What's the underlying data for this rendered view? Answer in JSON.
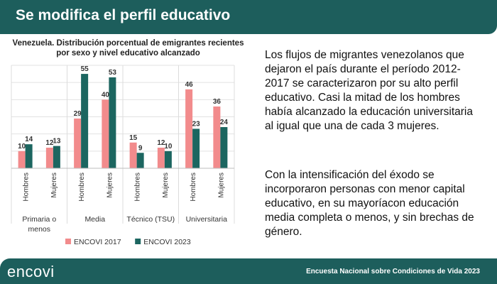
{
  "header": {
    "title": "Se modifica el perfil educativo"
  },
  "chart_data": {
    "type": "bar",
    "title": "Venezuela. Distribución porcentual de emigrantes recientes por sexo y nivel educativo alcanzado",
    "groups": [
      "Primaria o menos",
      "Media",
      "Técnico (TSU)",
      "Universitaria"
    ],
    "categories": [
      "Hombres",
      "Mujeres",
      "Hombres",
      "Mujeres",
      "Hombres",
      "Mujeres",
      "Hombres",
      "Mujeres"
    ],
    "series": [
      {
        "name": "ENCOVI 2017",
        "values": [
          10,
          12,
          29,
          40,
          15,
          12,
          46,
          36
        ],
        "color": "#f28b8c"
      },
      {
        "name": "ENCOVI 2023",
        "values": [
          14,
          13,
          55,
          53,
          9,
          10,
          23,
          24
        ],
        "color": "#1c6660"
      }
    ],
    "ylim": [
      0,
      60
    ],
    "grid": true,
    "legend": "bottom"
  },
  "body": {
    "paragraph1": "Los flujos de migrantes venezolanos que dejaron el país durante el período 2012-2017 se caracterizaron por su alto perfil educativo.  Casi la mitad de los hombres había alcanzado la educación universitaria al igual que una de cada 3 mujeres.",
    "paragraph2": "Con la intensificación del éxodo se incorporaron personas con menor capital educativo, en su mayoríacon educación media completa o menos, y sin brechas de género."
  },
  "footer": {
    "logo": "encovi",
    "caption": "Encuesta Nacional sobre Condiciones de Vida 2023"
  }
}
